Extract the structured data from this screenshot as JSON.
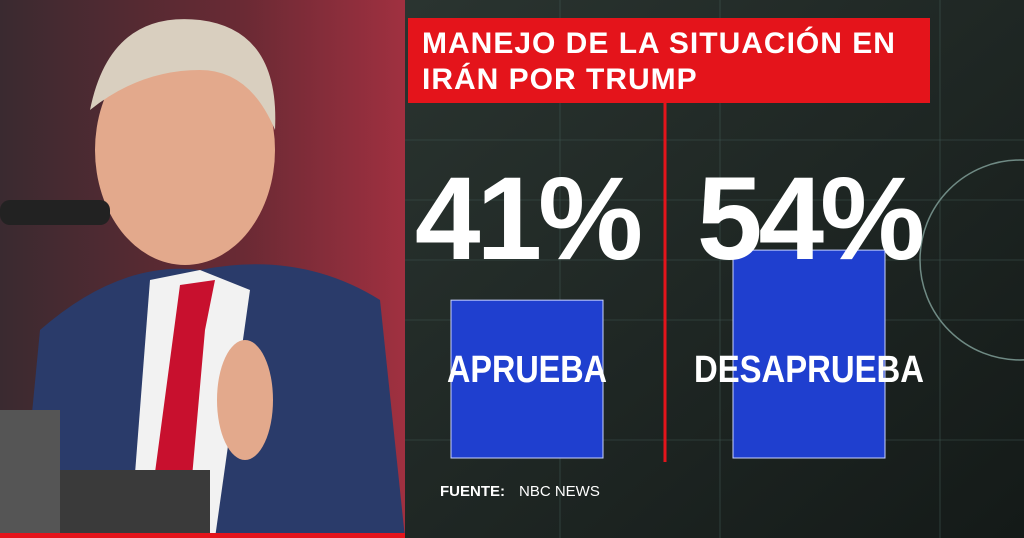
{
  "chart_data": {
    "type": "bar",
    "title": "MANEJO DE LA SITUACIÓN EN IRÁN POR TRUMP",
    "categories": [
      "APRUEBA",
      "DESAPRUEBA"
    ],
    "values": [
      41,
      54
    ],
    "value_labels": [
      "41%",
      "54%"
    ],
    "color": "#1f3fcf",
    "source_label": "FUENTE:",
    "source": "NBC NEWS"
  }
}
